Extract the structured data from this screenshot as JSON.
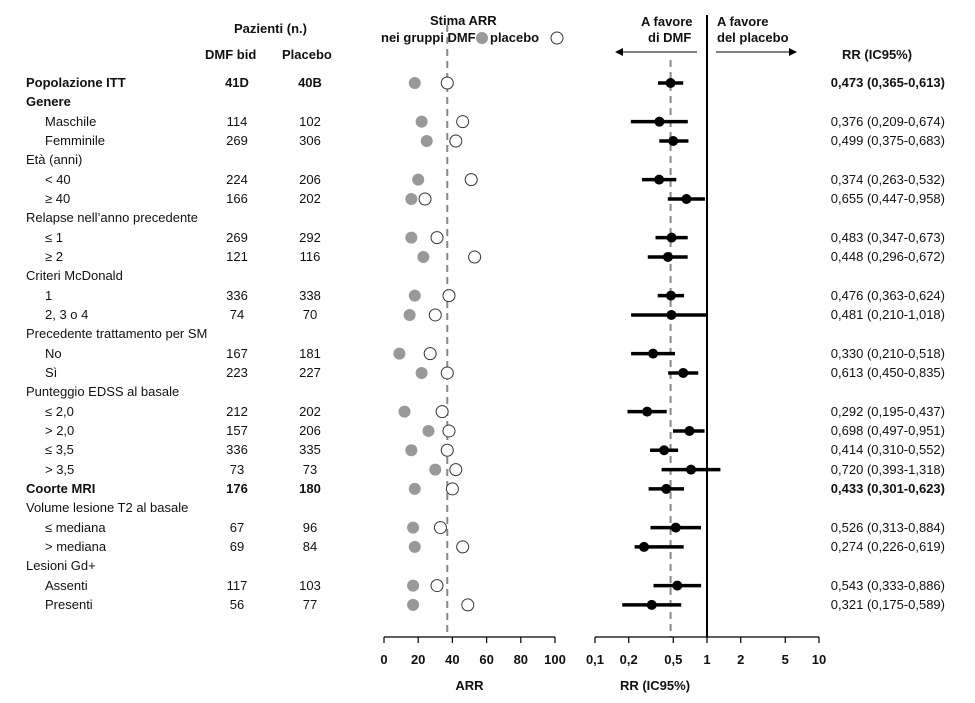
{
  "headers": {
    "patients_title": "Pazienti (n.)",
    "dmf_col": "DMF bid",
    "placebo_col": "Placebo",
    "arr_title_line1": "Stima ARR",
    "arr_title_line2_a": "nei gruppi DMF",
    "arr_title_line2_b": "placebo",
    "favor_dmf_line1": "A favore",
    "favor_dmf_line2": "di DMF",
    "favor_placebo_line1": "A favore",
    "favor_placebo_line2": "del placebo",
    "rr_col": "RR (IC95%)"
  },
  "rows": [
    {
      "label": "Popolazione ITT",
      "bold": true,
      "indent": false,
      "dmf": "41D",
      "placebo": "40B",
      "rr_text": "0,473 (0,365-0,613)"
    },
    {
      "label": "Genere",
      "bold": true,
      "indent": false
    },
    {
      "label": "Maschile",
      "indent": true,
      "dmf": "114",
      "placebo": "102",
      "rr_text": "0,376 (0,209-0,674)"
    },
    {
      "label": "Femminile",
      "indent": true,
      "dmf": "269",
      "placebo": "306",
      "rr_text": "0,499 (0,375-0,683)"
    },
    {
      "label": "Età (anni)",
      "indent": false
    },
    {
      "label": "< 40",
      "indent": true,
      "dmf": "224",
      "placebo": "206",
      "rr_text": "0,374 (0,263-0,532)"
    },
    {
      "label": "≥ 40",
      "indent": true,
      "dmf": "166",
      "placebo": "202",
      "rr_text": "0,655 (0,447-0,958)"
    },
    {
      "label": "Relapse nell’anno precedente",
      "indent": false
    },
    {
      "label": "≤ 1",
      "indent": true,
      "dmf": "269",
      "placebo": "292",
      "rr_text": "0,483 (0,347-0,673)"
    },
    {
      "label": "≥ 2",
      "indent": true,
      "dmf": "121",
      "placebo": "116",
      "rr_text": "0,448 (0,296-0,672)"
    },
    {
      "label": "Criteri McDonald",
      "indent": false
    },
    {
      "label": "1",
      "indent": true,
      "dmf": "336",
      "placebo": "338",
      "rr_text": "0,476 (0,363-0,624)"
    },
    {
      "label": "2, 3 o 4",
      "indent": true,
      "dmf": "74",
      "placebo": "70",
      "rr_text": "0,481 (0,210-1,018)"
    },
    {
      "label": "Precedente trattamento per SM",
      "indent": false
    },
    {
      "label": "No",
      "indent": true,
      "dmf": "167",
      "placebo": "181",
      "rr_text": "0,330 (0,210-0,518)"
    },
    {
      "label": "Sì",
      "indent": true,
      "dmf": "223",
      "placebo": "227",
      "rr_text": "0,613 (0,450-0,835)"
    },
    {
      "label": "Punteggio EDSS al basale",
      "indent": false
    },
    {
      "label": "≤ 2,0",
      "indent": true,
      "dmf": "212",
      "placebo": "202",
      "rr_text": "0,292 (0,195-0,437)"
    },
    {
      "label": "> 2,0",
      "indent": true,
      "dmf": "157",
      "placebo": "206",
      "rr_text": "0,698 (0,497-0,951)"
    },
    {
      "label": "≤ 3,5",
      "indent": true,
      "dmf": "336",
      "placebo": "335",
      "rr_text": "0,414 (0,310-0,552)"
    },
    {
      "label": "> 3,5",
      "indent": true,
      "dmf": "73",
      "placebo": "73",
      "rr_text": "0,720 (0,393-1,318)"
    },
    {
      "label": "Coorte MRI",
      "bold": true,
      "indent": false,
      "dmf": "176",
      "placebo": "180",
      "rr_text": "0,433 (0,301-0,623)"
    },
    {
      "label": "Volume lesione T2 al basale",
      "indent": false
    },
    {
      "label": "≤ mediana",
      "indent": true,
      "dmf": "67",
      "placebo": "96",
      "rr_text": "0,526 (0,313-0,884)"
    },
    {
      "label": "> mediana",
      "indent": true,
      "dmf": "69",
      "placebo": "84",
      "rr_text": "0,274 (0,226-0,619)"
    },
    {
      "label": "Lesioni Gd+",
      "indent": false
    },
    {
      "label": "Assenti",
      "indent": true,
      "dmf": "117",
      "placebo": "103",
      "rr_text": "0,543 (0,333-0,886)"
    },
    {
      "label": "Presenti",
      "indent": true,
      "dmf": "56",
      "placebo": "77",
      "rr_text": "0,321 (0,175-0,589)"
    }
  ],
  "colors": {
    "dmf_marker": "#999999",
    "rr_marker": "#000000",
    "ref_dashed": "#888888"
  },
  "chart_data": [
    {
      "type": "scatter",
      "title": "Stima ARR nei gruppi DMF e placebo",
      "xlabel": "ARR",
      "xlim": [
        0,
        100
      ],
      "xticks": [
        0,
        20,
        40,
        60,
        80,
        100
      ],
      "reference_line": 37,
      "series": [
        {
          "name": "DMF",
          "marker": "filled-circle",
          "values": [
            18,
            null,
            22,
            25,
            null,
            20,
            16,
            null,
            16,
            23,
            null,
            18,
            15,
            null,
            9,
            22,
            null,
            12,
            26,
            16,
            30,
            18,
            null,
            17,
            18,
            null,
            17,
            17
          ]
        },
        {
          "name": "placebo",
          "marker": "open-circle",
          "values": [
            37,
            null,
            46,
            42,
            null,
            51,
            24,
            null,
            31,
            53,
            null,
            38,
            30,
            null,
            27,
            37,
            null,
            34,
            38,
            37,
            42,
            40,
            null,
            33,
            46,
            null,
            31,
            49
          ]
        }
      ]
    },
    {
      "type": "scatter",
      "title": "RR (IC95%)",
      "xlabel": "RR (IC95%)",
      "xscale": "log",
      "xlim": [
        0.1,
        10
      ],
      "xticks": [
        0.1,
        0.2,
        0.5,
        1,
        2,
        5,
        10
      ],
      "xtick_labels": [
        "0,1",
        "0,2",
        "0,5",
        "1",
        "2",
        "5",
        "10"
      ],
      "reference_line": 1,
      "dashed_line": 0.473,
      "series": [
        {
          "name": "RR",
          "values": [
            {
              "rr": 0.473,
              "low": 0.365,
              "high": 0.613
            },
            null,
            {
              "rr": 0.376,
              "low": 0.209,
              "high": 0.674
            },
            {
              "rr": 0.499,
              "low": 0.375,
              "high": 0.683
            },
            null,
            {
              "rr": 0.374,
              "low": 0.263,
              "high": 0.532
            },
            {
              "rr": 0.655,
              "low": 0.447,
              "high": 0.958
            },
            null,
            {
              "rr": 0.483,
              "low": 0.347,
              "high": 0.673
            },
            {
              "rr": 0.448,
              "low": 0.296,
              "high": 0.672
            },
            null,
            {
              "rr": 0.476,
              "low": 0.363,
              "high": 0.624
            },
            {
              "rr": 0.481,
              "low": 0.21,
              "high": 1.018
            },
            null,
            {
              "rr": 0.33,
              "low": 0.21,
              "high": 0.518
            },
            {
              "rr": 0.613,
              "low": 0.45,
              "high": 0.835
            },
            null,
            {
              "rr": 0.292,
              "low": 0.195,
              "high": 0.437
            },
            {
              "rr": 0.698,
              "low": 0.497,
              "high": 0.951
            },
            {
              "rr": 0.414,
              "low": 0.31,
              "high": 0.552
            },
            {
              "rr": 0.72,
              "low": 0.393,
              "high": 1.318
            },
            {
              "rr": 0.433,
              "low": 0.301,
              "high": 0.623
            },
            null,
            {
              "rr": 0.526,
              "low": 0.313,
              "high": 0.884
            },
            {
              "rr": 0.274,
              "low": 0.226,
              "high": 0.619
            },
            null,
            {
              "rr": 0.543,
              "low": 0.333,
              "high": 0.886
            },
            {
              "rr": 0.321,
              "low": 0.175,
              "high": 0.589
            }
          ]
        }
      ]
    }
  ]
}
